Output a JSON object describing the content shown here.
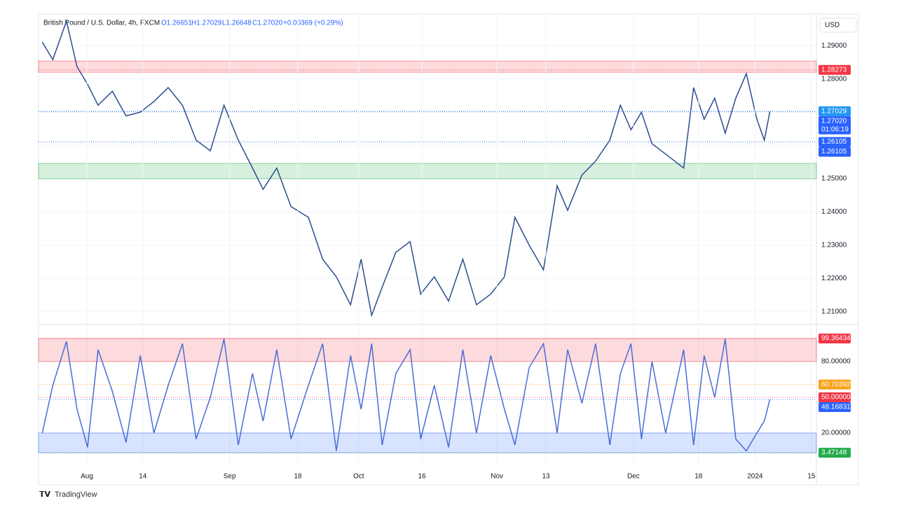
{
  "header": {
    "title": "British Pound / U.S. Dollar, 4h, FXCM",
    "ohlc": [
      "O1.26651",
      "H1.27029",
      "L1.26648",
      "C1.27020"
    ],
    "change": "+0.00369 (+0.29%)",
    "currency": "USD",
    "brand": "TradingView"
  },
  "chart_data": [
    {
      "type": "line",
      "name": "price",
      "x": [
        0.6,
        2.3,
        4.5,
        6.2,
        7.9,
        9.6,
        11.9,
        14.1,
        16.4,
        18.6,
        20.9,
        23.2,
        25.4,
        27.7,
        29.9,
        32.2,
        34.5,
        36.2,
        38.4,
        40.7,
        43.5,
        45.8,
        48.0,
        50.3,
        52.0,
        53.7,
        55.4,
        57.6,
        59.9,
        61.6,
        63.8,
        66.1,
        68.4,
        70.6,
        72.9,
        75.1,
        76.8,
        79.1,
        81.4,
        83.6,
        85.3,
        87.6,
        89.8,
        92.1,
        93.8,
        95.5,
        97.2,
        98.9,
        101.1,
        104.0,
        105.6,
        107.3,
        109.0,
        110.7,
        112.4,
        114.1,
        115.8,
        117.0,
        117.9
      ],
      "series": [
        {
          "color": "#2a4d8f",
          "values": [
            1.2911,
            1.2858,
            1.2974,
            1.2837,
            1.2784,
            1.2721,
            1.2763,
            1.2689,
            1.27,
            1.2732,
            1.2774,
            1.2721,
            1.2616,
            1.2584,
            1.2721,
            1.2616,
            1.2532,
            1.2468,
            1.2532,
            1.2416,
            1.2384,
            1.2258,
            1.2205,
            1.2121,
            1.2258,
            1.2089,
            1.2174,
            1.2279,
            1.2311,
            1.2153,
            1.2205,
            1.2132,
            1.2258,
            1.2121,
            1.2153,
            1.2205,
            1.2384,
            1.23,
            1.2226,
            1.2479,
            1.2405,
            1.2511,
            1.2553,
            1.2616,
            1.2721,
            1.2647,
            1.27,
            1.2605,
            1.2574,
            1.2532,
            1.2774,
            1.2679,
            1.2742,
            1.2637,
            1.2742,
            1.2816,
            1.2679,
            1.2616,
            1.2702
          ]
        }
      ],
      "xlim": [
        0,
        125.4
      ],
      "ylim": [
        1.2064,
        1.2991
      ],
      "yticks": [
        {
          "value": 1.21,
          "label": "1.21000"
        },
        {
          "value": 1.22,
          "label": "1.22000"
        },
        {
          "value": 1.23,
          "label": "1.23000"
        },
        {
          "value": 1.24,
          "label": "1.24000"
        },
        {
          "value": 1.25,
          "label": "1.25000"
        },
        {
          "value": 1.26,
          "label": "1.26000"
        },
        {
          "value": 1.27,
          "label": "1.27000"
        },
        {
          "value": 1.28,
          "label": "1.28000"
        },
        {
          "value": 1.29,
          "label": "1.29000"
        }
      ],
      "zones": [
        {
          "low": 1.282,
          "high": 1.2854,
          "color": "#f23645"
        },
        {
          "low": 1.25,
          "high": 1.2546,
          "color": "#22ab4a"
        }
      ],
      "markers": [
        {
          "value": 1.28273,
          "label": "1.28273",
          "color": "#f23645"
        },
        {
          "value": 1.27029,
          "label": "1.27029",
          "color": "#2196f3"
        },
        {
          "value": 1.2702,
          "label": "1.27020",
          "sub": "01:06:19",
          "color": "#2962ff"
        },
        {
          "value": 1.26105,
          "label": "1.26105",
          "color": "#2962ff"
        },
        {
          "value": 1.26105,
          "label": "1.26105",
          "color": "#2962ff"
        }
      ]
    },
    {
      "type": "line",
      "name": "oscillator",
      "x": [
        0.6,
        2.3,
        4.5,
        6.2,
        7.9,
        9.6,
        11.9,
        14.1,
        16.4,
        18.6,
        20.9,
        23.2,
        25.4,
        27.7,
        29.9,
        32.2,
        34.5,
        36.2,
        38.4,
        40.7,
        43.5,
        45.8,
        48.0,
        50.3,
        52.0,
        53.7,
        55.4,
        57.6,
        59.9,
        61.6,
        63.8,
        66.1,
        68.4,
        70.6,
        72.9,
        75.1,
        76.8,
        79.1,
        81.4,
        83.6,
        85.3,
        87.6,
        89.8,
        92.1,
        93.8,
        95.5,
        97.2,
        98.9,
        101.1,
        104.0,
        105.6,
        107.3,
        109.0,
        110.7,
        112.4,
        114.1,
        115.8,
        117.0,
        117.9
      ],
      "series": [
        {
          "color": "#4a6cd4",
          "values": [
            20,
            60,
            97,
            40,
            8,
            90,
            55,
            12,
            85,
            20,
            60,
            95,
            15,
            50,
            99,
            10,
            70,
            30,
            90,
            15,
            60,
            95,
            5,
            85,
            40,
            95,
            10,
            70,
            90,
            15,
            60,
            8,
            90,
            20,
            85,
            40,
            10,
            75,
            95,
            20,
            90,
            45,
            95,
            10,
            70,
            95,
            15,
            80,
            20,
            90,
            10,
            85,
            50,
            99,
            15,
            5,
            20,
            30,
            48.16831
          ]
        }
      ],
      "xlim": [
        0,
        125.4
      ],
      "ylim": [
        -4.7,
        110
      ],
      "yticks": [
        {
          "value": 20,
          "label": "20.00000"
        },
        {
          "value": 80,
          "label": "80.00000"
        }
      ],
      "xticks": [
        {
          "value": 7.8,
          "label": "Aug"
        },
        {
          "value": 16.8,
          "label": "14"
        },
        {
          "value": 30.8,
          "label": "Sep"
        },
        {
          "value": 41.8,
          "label": "18"
        },
        {
          "value": 51.6,
          "label": "Oct"
        },
        {
          "value": 61.8,
          "label": "16"
        },
        {
          "value": 73.9,
          "label": "Nov"
        },
        {
          "value": 81.8,
          "label": "13"
        },
        {
          "value": 95.9,
          "label": "Dec"
        },
        {
          "value": 106.4,
          "label": "18"
        },
        {
          "value": 115.5,
          "label": "2024"
        },
        {
          "value": 124.6,
          "label": "15"
        }
      ],
      "zones": [
        {
          "low": 80,
          "high": 99.36434,
          "color": "#f23645"
        },
        {
          "low": 3.47148,
          "high": 20,
          "color": "#2962ff"
        }
      ],
      "markers": [
        {
          "value": 99.36434,
          "label": "99.36434",
          "color": "#f23645"
        },
        {
          "value": 60.70392,
          "label": "60.70392",
          "color": "#f7a21b"
        },
        {
          "value": 50,
          "label": "50.00000",
          "color": "#f23645"
        },
        {
          "value": 48.16831,
          "label": "48.16831",
          "color": "#2962ff"
        },
        {
          "value": 3.47148,
          "label": "3.47148",
          "color": "#22ab4a"
        }
      ]
    }
  ]
}
